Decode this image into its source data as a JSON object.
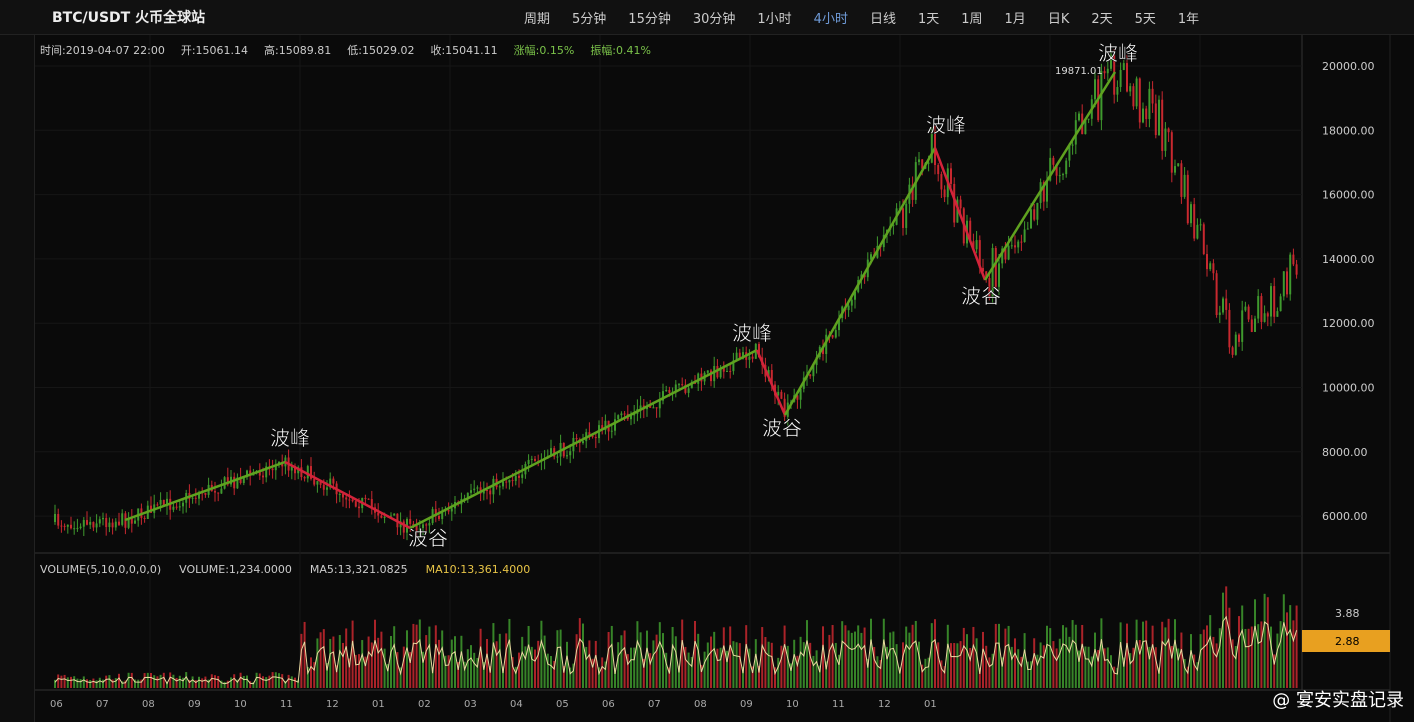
{
  "toolbar": {
    "symbol": "BTC/USDT 火币全球站",
    "intervals": [
      "周期",
      "5分钟",
      "15分钟",
      "30分钟",
      "1小时",
      "4小时",
      "日线",
      "1天",
      "1周",
      "1月",
      "日K",
      "2天",
      "5天",
      "1年"
    ]
  },
  "info_bar": [
    "时间:2019-04-07 22:00",
    "开:15061.14",
    "高:15089.81",
    "低:15029.02",
    "收:15041.11",
    "涨幅:0.15%",
    "振幅:0.41%"
  ],
  "price_axis": [
    "20000.00",
    "18000.00",
    "16000.00",
    "14000.00",
    "12000.00",
    "10000.00",
    "8000.00",
    "6000.00"
  ],
  "annotations": {
    "peaks": [
      "波峰",
      "波峰",
      "波峰",
      "波峰"
    ],
    "troughs": [
      "波谷",
      "波谷",
      "波谷"
    ],
    "peak_price": "19871.01"
  },
  "volume_panel": {
    "legend": [
      "VOLUME(5,10,0,0,0,0)",
      "VOLUME:1,234.0000",
      "MA5:13,321.0825",
      "MA10:13,361.4000"
    ],
    "axis": [
      "3.88",
      "2.88"
    ]
  },
  "time_axis": [
    "06",
    "07",
    "08",
    "09",
    "10",
    "11",
    "12",
    "01",
    "02",
    "03",
    "04",
    "05",
    "06",
    "07",
    "08",
    "09",
    "10",
    "11",
    "12",
    "01"
  ],
  "watermark": "@ 宴安实盘记录"
}
